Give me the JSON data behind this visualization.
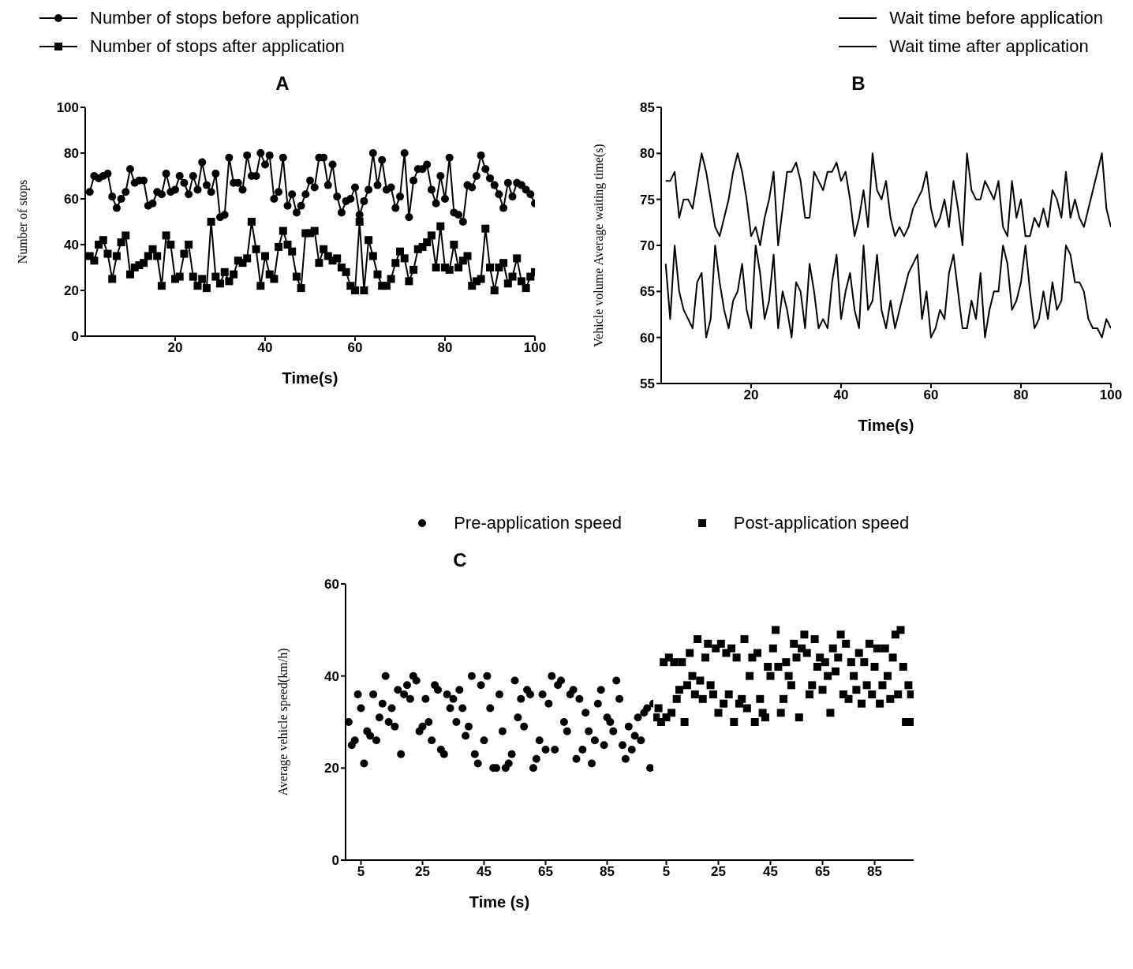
{
  "chart_data": [
    {
      "type": "line",
      "title": "A",
      "xlabel": "Time(s)",
      "ylabel": "Number of stops",
      "legend": "top left",
      "xlim": [
        0,
        100
      ],
      "xticks": [
        20,
        40,
        60,
        80,
        100
      ],
      "ylim": [
        0,
        100
      ],
      "yticks": [
        0,
        20,
        40,
        60,
        80,
        100
      ],
      "x": [
        1,
        2,
        3,
        4,
        5,
        6,
        7,
        8,
        9,
        10,
        11,
        12,
        13,
        14,
        15,
        16,
        17,
        18,
        19,
        20,
        21,
        22,
        23,
        24,
        25,
        26,
        27,
        28,
        29,
        30,
        31,
        32,
        33,
        34,
        35,
        36,
        37,
        38,
        39,
        40,
        41,
        42,
        43,
        44,
        45,
        46,
        47,
        48,
        49,
        50,
        51,
        52,
        53,
        54,
        55,
        56,
        57,
        58,
        59,
        60,
        61,
        62,
        63,
        64,
        65,
        66,
        67,
        68,
        69,
        70,
        71,
        72,
        73,
        74,
        75,
        76,
        77,
        78,
        79,
        80,
        81,
        82,
        83,
        84,
        85,
        86,
        87,
        88,
        89,
        90,
        91,
        92,
        93,
        94,
        95,
        96,
        97,
        98,
        99,
        100
      ],
      "series": [
        {
          "name": "Number of stops before application",
          "color": "#000000",
          "marker": "circle",
          "values": [
            63,
            70,
            69,
            70,
            71,
            61,
            56,
            60,
            63,
            73,
            67,
            68,
            68,
            57,
            58,
            63,
            62,
            71,
            63,
            64,
            70,
            67,
            62,
            70,
            64,
            76,
            66,
            63,
            71,
            52,
            53,
            78,
            67,
            67,
            64,
            79,
            70,
            70,
            80,
            75,
            79,
            60,
            63,
            78,
            57,
            62,
            54,
            57,
            62,
            68,
            65,
            78,
            78,
            66,
            75,
            61,
            54,
            59,
            60,
            65,
            53,
            59,
            64,
            80,
            66,
            77,
            64,
            65,
            56,
            61,
            80,
            52,
            68,
            73,
            73,
            75,
            64,
            58,
            70,
            60,
            78,
            54,
            53,
            50,
            66,
            65,
            70,
            79,
            73,
            69,
            66,
            62,
            56,
            67,
            61,
            67,
            66,
            64,
            62,
            58
          ]
        },
        {
          "name": "Number of stops after application",
          "color": "#000000",
          "marker": "square",
          "values": [
            35,
            33,
            40,
            42,
            36,
            25,
            35,
            41,
            44,
            27,
            30,
            31,
            32,
            35,
            38,
            35,
            22,
            44,
            40,
            25,
            26,
            36,
            40,
            26,
            22,
            25,
            21,
            50,
            26,
            23,
            28,
            24,
            27,
            33,
            32,
            34,
            50,
            38,
            22,
            35,
            27,
            25,
            39,
            46,
            40,
            37,
            26,
            21,
            45,
            45,
            46,
            32,
            38,
            35,
            33,
            34,
            30,
            28,
            22,
            20,
            50,
            20,
            42,
            35,
            27,
            22,
            22,
            25,
            32,
            37,
            34,
            24,
            29,
            38,
            39,
            41,
            44,
            30,
            48,
            30,
            29,
            40,
            30,
            33,
            35,
            22,
            24,
            25,
            47,
            30,
            20,
            30,
            32,
            23,
            26,
            34,
            24,
            21,
            26,
            28
          ]
        }
      ]
    },
    {
      "type": "line",
      "title": "B",
      "xlabel": "Time(s)",
      "ylabel": "Vehicle volume Average waiting time(s)",
      "legend": "top right",
      "xlim": [
        0,
        100
      ],
      "xticks": [
        20,
        40,
        60,
        80,
        100
      ],
      "ylim": [
        55,
        85
      ],
      "yticks": [
        55,
        60,
        65,
        70,
        75,
        80,
        85
      ],
      "x": [
        1,
        2,
        3,
        4,
        5,
        6,
        7,
        8,
        9,
        10,
        11,
        12,
        13,
        14,
        15,
        16,
        17,
        18,
        19,
        20,
        21,
        22,
        23,
        24,
        25,
        26,
        27,
        28,
        29,
        30,
        31,
        32,
        33,
        34,
        35,
        36,
        37,
        38,
        39,
        40,
        41,
        42,
        43,
        44,
        45,
        46,
        47,
        48,
        49,
        50,
        51,
        52,
        53,
        54,
        55,
        56,
        57,
        58,
        59,
        60,
        61,
        62,
        63,
        64,
        65,
        66,
        67,
        68,
        69,
        70,
        71,
        72,
        73,
        74,
        75,
        76,
        77,
        78,
        79,
        80,
        81,
        82,
        83,
        84,
        85,
        86,
        87,
        88,
        89,
        90,
        91,
        92,
        93,
        94,
        95,
        96,
        97,
        98,
        99,
        100
      ],
      "series": [
        {
          "name": "Wait time before application",
          "color": "#000000",
          "values": [
            77,
            77,
            78,
            73,
            75,
            75,
            74,
            77,
            80,
            78,
            75,
            72,
            71,
            73,
            75,
            78,
            80,
            78,
            75,
            71,
            72,
            70,
            73,
            75,
            78,
            70,
            74,
            78,
            78,
            79,
            77,
            73,
            73,
            78,
            77,
            76,
            78,
            78,
            79,
            77,
            78,
            75,
            71,
            73,
            76,
            72,
            80,
            76,
            75,
            77,
            73,
            71,
            72,
            71,
            72,
            74,
            75,
            76,
            78,
            74,
            72,
            73,
            75,
            72,
            77,
            74,
            70,
            80,
            76,
            75,
            75,
            77,
            76,
            75,
            77,
            72,
            71,
            77,
            73,
            75,
            71,
            71,
            73,
            72,
            74,
            72,
            76,
            75,
            73,
            78,
            73,
            75,
            73,
            72,
            74,
            76,
            78,
            80,
            74,
            72
          ]
        },
        {
          "name": "Wait time after application",
          "color": "#000000",
          "values": [
            68,
            62,
            70,
            65,
            63,
            62,
            61,
            66,
            67,
            60,
            62,
            70,
            66,
            63,
            61,
            64,
            65,
            68,
            63,
            61,
            70,
            67,
            62,
            64,
            69,
            61,
            65,
            63,
            60,
            66,
            65,
            61,
            68,
            65,
            61,
            62,
            61,
            66,
            69,
            62,
            65,
            67,
            63,
            61,
            70,
            63,
            64,
            69,
            63,
            61,
            64,
            61,
            63,
            65,
            67,
            68,
            69,
            62,
            65,
            60,
            61,
            63,
            62,
            67,
            69,
            65,
            61,
            61,
            64,
            62,
            67,
            60,
            63,
            65,
            65,
            70,
            68,
            63,
            64,
            66,
            70,
            65,
            61,
            62,
            65,
            62,
            66,
            63,
            64,
            70,
            69,
            66,
            66,
            65,
            62,
            61,
            61,
            60,
            62,
            61
          ]
        }
      ]
    },
    {
      "type": "scatter",
      "title": "C",
      "xlabel": "Time (s)",
      "ylabel": "Average vehicle speed(km/h)",
      "legend": "top right",
      "xlim": [
        0,
        100
      ],
      "xticks": [
        5,
        25,
        45,
        65,
        85
      ],
      "ylim": [
        0,
        60
      ],
      "yticks": [
        0,
        20,
        40,
        60
      ],
      "series": [
        {
          "name": "Pre-application speed",
          "color": "#000000",
          "marker": "circle",
          "x": [
            1,
            2,
            3,
            4,
            5,
            6,
            7,
            8,
            9,
            10,
            11,
            12,
            13,
            14,
            15,
            16,
            17,
            18,
            19,
            20,
            21,
            22,
            23,
            24,
            25,
            26,
            27,
            28,
            29,
            30,
            31,
            32,
            33,
            34,
            35,
            36,
            37,
            38,
            39,
            40,
            41,
            42,
            43,
            44,
            45,
            46,
            47,
            48,
            49,
            50,
            51,
            52,
            53,
            54,
            55,
            56,
            57,
            58,
            59,
            60,
            61,
            62,
            63,
            64,
            65,
            66,
            67,
            68,
            69,
            70,
            71,
            72,
            73,
            74,
            75,
            76,
            77,
            78,
            79,
            80,
            81,
            82,
            83,
            84,
            85,
            86,
            87,
            88,
            89,
            90,
            91,
            92,
            93,
            94,
            95,
            96,
            97,
            98,
            99,
            100
          ],
          "values": [
            30,
            25,
            26,
            36,
            33,
            21,
            28,
            27,
            36,
            26,
            31,
            34,
            40,
            30,
            33,
            29,
            37,
            23,
            36,
            38,
            35,
            40,
            39,
            28,
            29,
            35,
            30,
            26,
            38,
            37,
            24,
            23,
            36,
            33,
            35,
            30,
            37,
            33,
            27,
            29,
            40,
            23,
            21,
            38,
            26,
            40,
            33,
            20,
            20,
            36,
            28,
            20,
            21,
            23,
            39,
            31,
            35,
            29,
            37,
            36,
            20,
            22,
            26,
            36,
            24,
            34,
            40,
            24,
            38,
            39,
            30,
            28,
            36,
            37,
            22,
            35,
            24,
            32,
            28,
            21,
            26,
            34,
            37,
            25,
            31,
            30,
            28,
            39,
            35,
            25,
            22,
            29,
            24,
            27,
            31,
            26,
            32,
            33,
            20,
            34
          ]
        }
      ]
    },
    {
      "type": "scatter",
      "legend": "top",
      "tick_labels": "x",
      "xlim": [
        0,
        100
      ],
      "xticks": [
        5,
        25,
        45,
        65,
        85
      ],
      "ylim": [
        0,
        60
      ],
      "yticks": [
        0,
        20,
        40,
        60
      ],
      "series": [
        {
          "name": "Post-application speed",
          "color": "#000000",
          "marker": "square",
          "x": [
            1,
            2,
            3,
            4,
            5,
            6,
            7,
            8,
            9,
            10,
            11,
            12,
            13,
            14,
            15,
            16,
            17,
            18,
            19,
            20,
            21,
            22,
            23,
            24,
            25,
            26,
            27,
            28,
            29,
            30,
            31,
            32,
            33,
            34,
            35,
            36,
            37,
            38,
            39,
            40,
            41,
            42,
            43,
            44,
            45,
            46,
            47,
            48,
            49,
            50,
            51,
            52,
            53,
            54,
            55,
            56,
            57,
            58,
            59,
            60,
            61,
            62,
            63,
            64,
            65,
            66,
            67,
            68,
            69,
            70,
            71,
            72,
            73,
            74,
            75,
            76,
            77,
            78,
            79,
            80,
            81,
            82,
            83,
            84,
            85,
            86,
            87,
            88,
            89,
            90,
            91,
            92,
            93,
            94,
            95,
            96,
            97,
            98,
            99,
            100
          ],
          "values": [
            31,
            33,
            30,
            43,
            31,
            44,
            32,
            43,
            35,
            37,
            43,
            30,
            38,
            45,
            40,
            36,
            48,
            39,
            35,
            44,
            47,
            38,
            36,
            46,
            32,
            47,
            34,
            45,
            36,
            46,
            30,
            44,
            34,
            35,
            48,
            33,
            40,
            44,
            30,
            45,
            35,
            32,
            31,
            42,
            40,
            46,
            50,
            42,
            32,
            35,
            43,
            40,
            38,
            47,
            44,
            31,
            46,
            49,
            45,
            36,
            38,
            48,
            42,
            44,
            37,
            43,
            40,
            32,
            46,
            41,
            44,
            49,
            36,
            47,
            35,
            43,
            40,
            37,
            45,
            34,
            43,
            38,
            47,
            36,
            42,
            46,
            34,
            38,
            46,
            40,
            35,
            44,
            49,
            36,
            50,
            42,
            30,
            38,
            36,
            30
          ]
        }
      ]
    }
  ]
}
